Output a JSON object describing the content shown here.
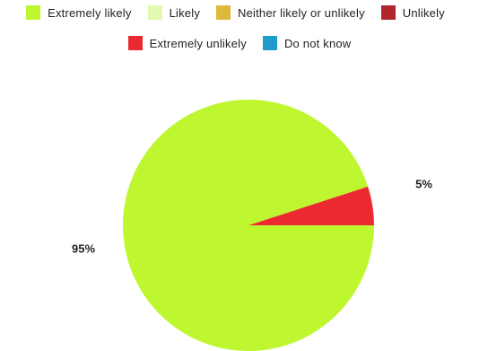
{
  "chart_data": {
    "type": "pie",
    "title": "",
    "categories": [
      "Extremely likely",
      "Likely",
      "Neither likely or unlikely",
      "Unlikely",
      "Extremely unlikely",
      "Do not know"
    ],
    "values": [
      95,
      0,
      0,
      0,
      5,
      0
    ],
    "value_labels": [
      "95%",
      "",
      "",
      "",
      "5%",
      ""
    ],
    "colors": [
      "#bef72f",
      "#e3f9b2",
      "#dcb93a",
      "#b3252c",
      "#ea2a2f",
      "#1f9ccb"
    ],
    "legend_position": "top",
    "legend": [
      {
        "label": "Extremely likely",
        "color": "#bef72f"
      },
      {
        "label": "Likely",
        "color": "#e3f9b2"
      },
      {
        "label": "Neither likely or unlikely",
        "color": "#dcb93a"
      },
      {
        "label": "Unlikely",
        "color": "#b3252c"
      },
      {
        "label": "Extremely unlikely",
        "color": "#ea2a2f"
      },
      {
        "label": "Do not know",
        "color": "#1f9ccb"
      }
    ]
  }
}
